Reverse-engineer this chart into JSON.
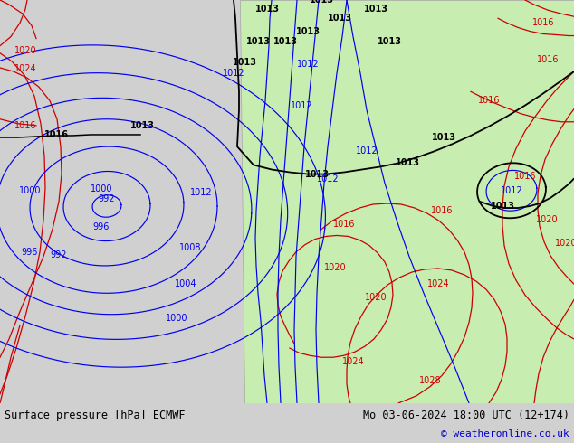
{
  "title_left": "Surface pressure [hPa] ECMWF",
  "title_right": "Mo 03-06-2024 18:00 UTC (12+174)",
  "copyright": "© weatheronline.co.uk",
  "bg_color": "#d0d0d0",
  "land_color": "#c8edb0",
  "ocean_color": "#d0d0d0",
  "fig_width": 6.34,
  "fig_height": 4.9,
  "dpi": 100,
  "blue_color": "#0000ee",
  "black_color": "#000000",
  "red_color": "#cc0000",
  "gray_land_color": "#b0b0b0",
  "bottom_white": "#ffffff",
  "copyright_color": "#0000cc"
}
